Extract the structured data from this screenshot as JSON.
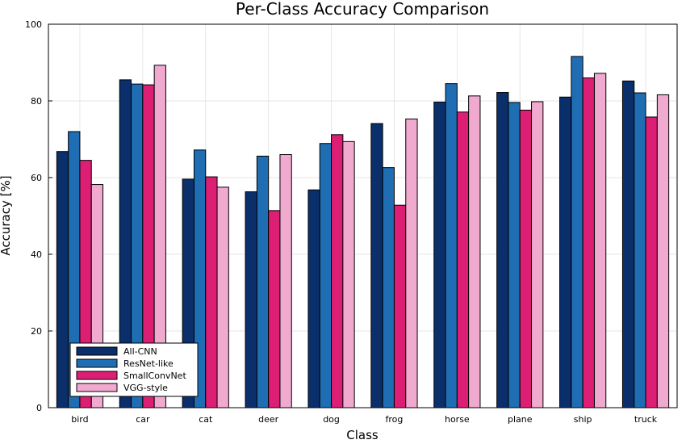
{
  "chart_data": {
    "type": "bar",
    "title": "Per-Class Accuracy Comparison",
    "xlabel": "Class",
    "ylabel": "Accuracy [%]",
    "ylim": [
      0,
      100
    ],
    "yticks": [
      0,
      20,
      40,
      60,
      80,
      100
    ],
    "grid": true,
    "legend_position": "bottom-left",
    "categories": [
      "bird",
      "car",
      "cat",
      "deer",
      "dog",
      "frog",
      "horse",
      "plane",
      "ship",
      "truck"
    ],
    "series": [
      {
        "name": "All-CNN",
        "color": "#0b2f6b",
        "values": [
          66.8,
          85.5,
          59.6,
          56.3,
          56.8,
          74.1,
          79.7,
          82.2,
          81.0,
          85.2
        ]
      },
      {
        "name": "ResNet-like",
        "color": "#1f6db3",
        "values": [
          72.0,
          84.4,
          67.2,
          65.6,
          68.9,
          62.6,
          84.5,
          79.6,
          91.6,
          82.1
        ]
      },
      {
        "name": "SmallConvNet",
        "color": "#dc1f74",
        "values": [
          64.5,
          84.2,
          60.2,
          51.4,
          71.2,
          52.8,
          77.1,
          77.6,
          86.0,
          75.8
        ]
      },
      {
        "name": "VGG-style",
        "color": "#f0a9cf",
        "values": [
          58.2,
          89.3,
          57.5,
          66.0,
          69.4,
          75.3,
          81.3,
          79.8,
          87.2,
          81.6
        ]
      }
    ]
  }
}
